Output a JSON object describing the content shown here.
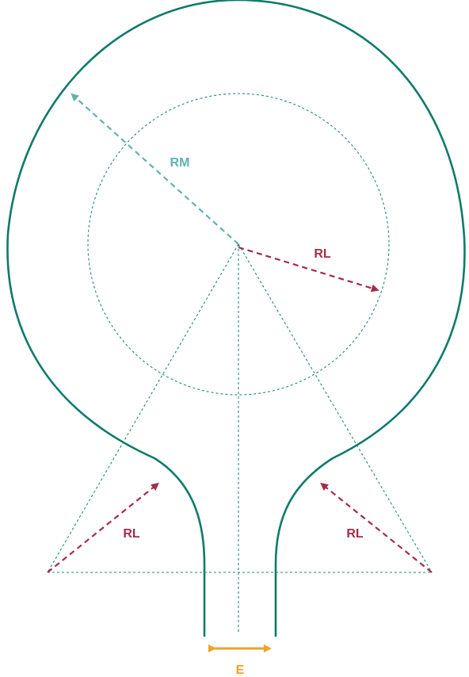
{
  "labels": {
    "rm": "RM",
    "rl_right": "RL",
    "rl_left": "RL",
    "rl_lower_right": "RL",
    "e": "E"
  },
  "colors": {
    "outline": "#0e7b68",
    "guide": "#1f8a78",
    "rm_arrow": "#5fb3ad",
    "rl_arrow": "#a32c4a",
    "e_arrow": "#f2a224"
  },
  "icons": {
    "arrowhead": "triangle-arrowhead"
  }
}
